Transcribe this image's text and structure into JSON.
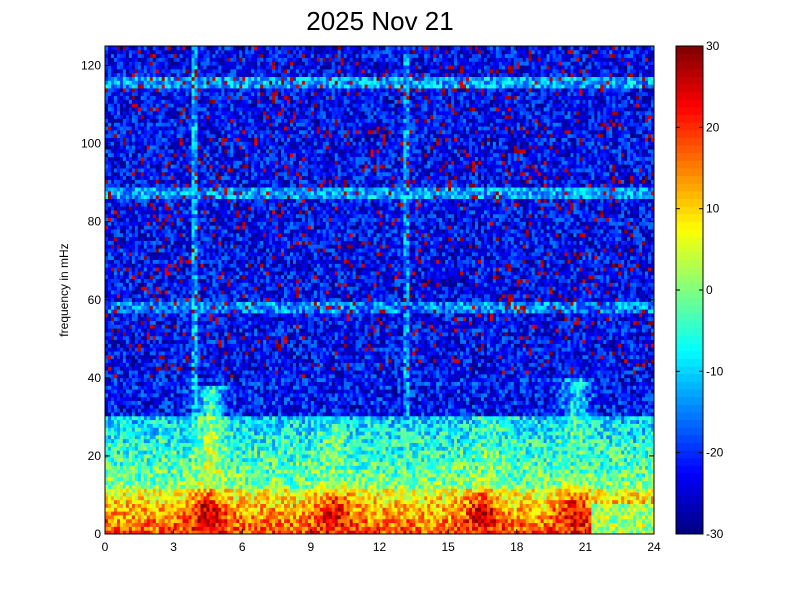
{
  "chart_data": {
    "type": "heatmap",
    "title": "2025 Nov 21",
    "xlabel": "",
    "ylabel": "frequency in mHz",
    "xlim": [
      0,
      24
    ],
    "ylim": [
      0,
      125
    ],
    "xticks": [
      0,
      3,
      6,
      9,
      12,
      15,
      18,
      21,
      24
    ],
    "yticks": [
      0,
      20,
      40,
      60,
      80,
      100,
      120
    ],
    "colorbar": {
      "range": [
        -30,
        30
      ],
      "ticks": [
        -30,
        -20,
        -10,
        0,
        10,
        20,
        30
      ],
      "colormap": "jet"
    },
    "grid": false,
    "background_level": -22,
    "low_frequency_band": {
      "frequency_range": [
        0,
        12
      ],
      "level_range": [
        5,
        28
      ]
    },
    "hot_spots": [
      {
        "hour": 4.5,
        "frequency": 5,
        "level": 28
      },
      {
        "hour": 10.0,
        "frequency": 5,
        "level": 25
      },
      {
        "hour": 16.5,
        "frequency": 5,
        "level": 26
      },
      {
        "hour": 20.5,
        "frequency": 5,
        "level": 24
      }
    ],
    "plumes": [
      {
        "hour": 4.6,
        "frequency_top": 38,
        "level": 5
      },
      {
        "hour": 10.0,
        "frequency_top": 28,
        "level": 0
      },
      {
        "hour": 16.8,
        "frequency_top": 30,
        "level": 0
      },
      {
        "hour": 20.6,
        "frequency_top": 40,
        "level": -2
      }
    ],
    "horizontal_bands": [
      {
        "frequency": 116,
        "level": -12
      },
      {
        "frequency": 87,
        "level": -12
      },
      {
        "frequency": 58,
        "level": -14
      }
    ],
    "vertical_bands": [
      {
        "hour": 3.9,
        "level": -12
      },
      {
        "hour": 13.2,
        "level": -14
      }
    ]
  }
}
